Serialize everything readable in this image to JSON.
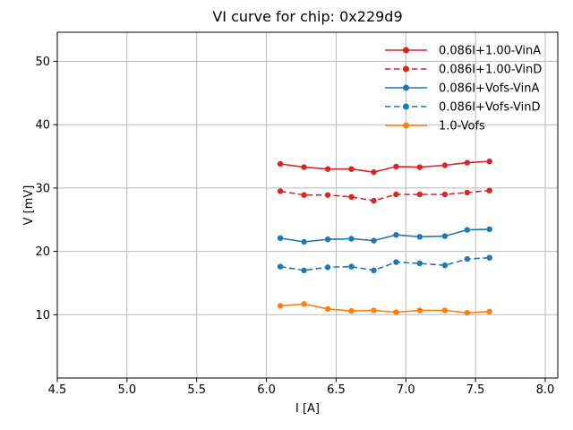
{
  "chart_data": {
    "type": "line",
    "title": "VI curve for chip: 0x229d9",
    "xlabel": "I [A]",
    "ylabel": "V [mV]",
    "xlim": [
      4.5,
      8.09
    ],
    "ylim": [
      0,
      54.6
    ],
    "xticks": [
      4.5,
      5.0,
      5.5,
      6.0,
      6.5,
      7.0,
      7.5,
      8.0
    ],
    "xtick_labels": [
      "4.5",
      "5.0",
      "5.5",
      "6.0",
      "6.5",
      "7.0",
      "7.5",
      "8.0"
    ],
    "yticks": [
      10,
      20,
      30,
      40,
      50
    ],
    "ytick_labels": [
      "10",
      "20",
      "30",
      "40",
      "50"
    ],
    "grid": true,
    "legend": {
      "position": "upper right",
      "frame": false
    },
    "x": [
      6.1,
      6.27,
      6.44,
      6.61,
      6.77,
      6.93,
      7.1,
      7.28,
      7.44,
      7.6
    ],
    "series": [
      {
        "name": "0.086I+1.00-VinA",
        "color": "#d62728",
        "linestyle": "solid",
        "marker": "circle",
        "values": [
          33.8,
          33.3,
          33.0,
          33.0,
          32.5,
          33.4,
          33.3,
          33.6,
          34.0,
          34.2
        ]
      },
      {
        "name": "0.086I+1.00-VinD",
        "color": "#d62728",
        "linestyle": "dashed",
        "marker": "circle",
        "values": [
          29.5,
          28.9,
          28.9,
          28.6,
          28.0,
          29.0,
          29.0,
          29.0,
          29.3,
          29.6
        ]
      },
      {
        "name": "0.086I+Vofs-VinA",
        "color": "#1f77b4",
        "linestyle": "solid",
        "marker": "circle",
        "values": [
          22.1,
          21.5,
          21.9,
          22.0,
          21.7,
          22.6,
          22.3,
          22.4,
          23.4,
          23.5
        ]
      },
      {
        "name": "0.086I+Vofs-VinD",
        "color": "#1f77b4",
        "linestyle": "dashed",
        "marker": "circle",
        "values": [
          17.6,
          17.0,
          17.5,
          17.6,
          17.0,
          18.3,
          18.1,
          17.8,
          18.8,
          19.0
        ]
      },
      {
        "name": "1.0-Vofs",
        "color": "#ff7f0e",
        "linestyle": "solid",
        "marker": "circle",
        "values": [
          11.4,
          11.7,
          10.9,
          10.6,
          10.7,
          10.4,
          10.7,
          10.7,
          10.3,
          10.5
        ]
      }
    ],
    "colors": {
      "grid": "#b9b9b9",
      "spine": "#000000",
      "text": "#000000",
      "background": "#ffffff"
    }
  }
}
